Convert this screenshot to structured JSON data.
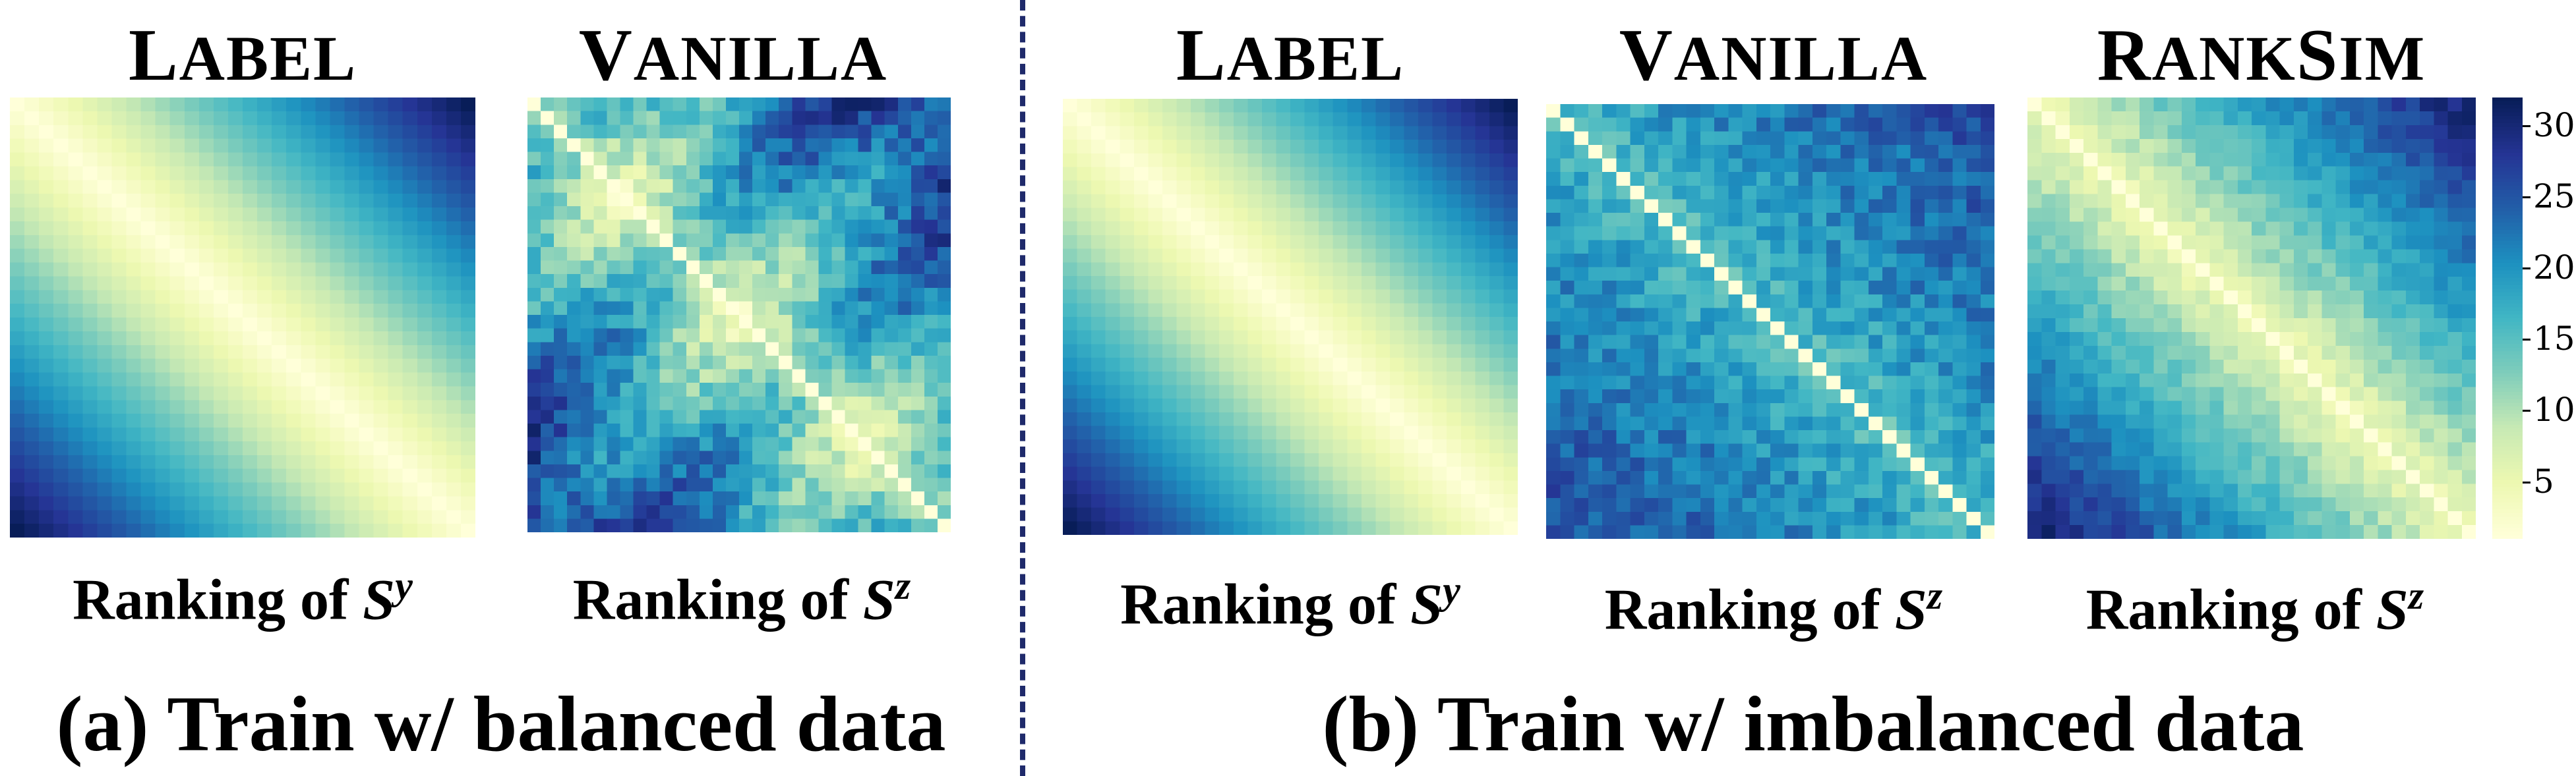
{
  "colormap": [
    "#ffffd9",
    "#edf8b1",
    "#c7e9b4",
    "#7fcdbb",
    "#41b6c4",
    "#1d91c0",
    "#225ea8",
    "#253494",
    "#081d58"
  ],
  "colorbar": {
    "ticks": [
      5,
      10,
      15,
      20,
      25,
      30
    ],
    "vmin": 1,
    "vmax": 32
  },
  "group_a": {
    "caption": "(a) Train w/ balanced data"
  },
  "group_b": {
    "caption": "(b) Train w/ imbalanced data"
  },
  "chart_data": [
    {
      "type": "heatmap",
      "title": "LABEL",
      "xlabel": "Ranking of",
      "xlabel_symbol": "S",
      "xlabel_sup": "y",
      "size": 32,
      "pattern": "label",
      "range": [
        1,
        32
      ]
    },
    {
      "type": "heatmap",
      "title": "VANILLA",
      "xlabel": "Ranking of",
      "xlabel_symbol": "S",
      "xlabel_sup": "z",
      "size": 32,
      "pattern": "vanilla_balanced",
      "range": [
        1,
        32
      ]
    },
    {
      "type": "heatmap",
      "title": "LABEL",
      "xlabel": "Ranking of",
      "xlabel_symbol": "S",
      "xlabel_sup": "y",
      "size": 32,
      "pattern": "label",
      "range": [
        1,
        32
      ]
    },
    {
      "type": "heatmap",
      "title": "VANILLA",
      "xlabel": "Ranking of",
      "xlabel_symbol": "S",
      "xlabel_sup": "z",
      "size": 32,
      "pattern": "vanilla_imbalanced",
      "range": [
        1,
        32
      ]
    },
    {
      "type": "heatmap",
      "title": "RANKSIM",
      "xlabel": "Ranking of",
      "xlabel_symbol": "S",
      "xlabel_sup": "z",
      "size": 32,
      "pattern": "ranksim",
      "range": [
        1,
        32
      ]
    }
  ]
}
